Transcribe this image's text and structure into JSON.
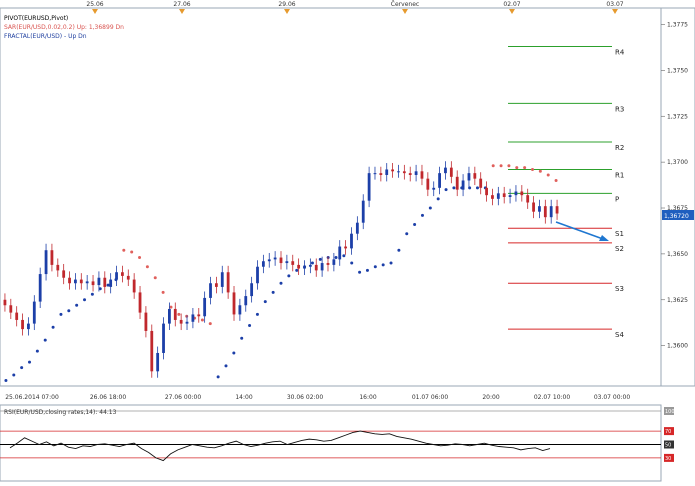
{
  "chart_data": {
    "type": "candlestick",
    "title": "PIVOT(EURUSD,Pivot)",
    "instrument": "EUR/USD",
    "legend": [
      {
        "name": "PIVOT(EURUSD,Pivot)",
        "color": "#000000"
      },
      {
        "name": "SAR(EUR/USD,0.02,0.2)   Up: 1,36899   Dn",
        "color": "#d9534f"
      },
      {
        "name": "FRACTAL(EUR/USD) - Up  Dn",
        "color": "#1f3f9f"
      }
    ],
    "top_date_labels": [
      "25.06",
      "27.06",
      "29.06",
      "Červenec",
      "02.07",
      "03.07"
    ],
    "bottom_time_labels": [
      "25.06.2014 07:00",
      "26.06 18:00",
      "27.06 00:00",
      "14:00",
      "30.06 02:00",
      "16:00",
      "01.07 06:00",
      "20:00",
      "02.07 10:00",
      "03.07 00:00"
    ],
    "y_ticks": [
      "1,3775",
      "1,3750",
      "1,3725",
      "1,3700",
      "1,3675",
      "1,3650",
      "1,3625",
      "1,3600"
    ],
    "ylim": [
      1.3578,
      1.3784
    ],
    "current_price": "1,36720",
    "current_price_value": 1.3672,
    "pivot_levels": [
      {
        "label": "R4",
        "value": 1.3763,
        "color": "#2ca02c"
      },
      {
        "label": "R3",
        "value": 1.3732,
        "color": "#2ca02c"
      },
      {
        "label": "R2",
        "value": 1.3711,
        "color": "#2ca02c"
      },
      {
        "label": "R1",
        "value": 1.3696,
        "color": "#2ca02c"
      },
      {
        "label": "P",
        "value": 1.3683,
        "color": "#2ca02c"
      },
      {
        "label": "S1",
        "value": 1.3664,
        "color": "#d62728"
      },
      {
        "label": "S2",
        "value": 1.3656,
        "color": "#d62728"
      },
      {
        "label": "S3",
        "value": 1.3634,
        "color": "#d62728"
      },
      {
        "label": "S4",
        "value": 1.3609,
        "color": "#d62728"
      }
    ],
    "candles_close": [
      1.3622,
      1.3618,
      1.3614,
      1.3609,
      1.3612,
      1.3624,
      1.3639,
      1.3652,
      1.3644,
      1.3641,
      1.3637,
      1.3634,
      1.3636,
      1.3634,
      1.3635,
      1.3633,
      1.3637,
      1.3632,
      1.3636,
      1.364,
      1.3638,
      1.3636,
      1.3629,
      1.3618,
      1.3608,
      1.3586,
      1.3596,
      1.3612,
      1.362,
      1.3614,
      1.3612,
      1.3613,
      1.3617,
      1.3616,
      1.3626,
      1.3634,
      1.3632,
      1.364,
      1.3629,
      1.3617,
      1.3622,
      1.3627,
      1.3634,
      1.3643,
      1.3646,
      1.3647,
      1.3648,
      1.3645,
      1.3646,
      1.3644,
      1.3642,
      1.3643,
      1.3644,
      1.3641,
      1.3645,
      1.3644,
      1.3647,
      1.3654,
      1.3653,
      1.3661,
      1.3667,
      1.3679,
      1.3694,
      1.3694,
      1.3693,
      1.3696,
      1.3695,
      1.3695,
      1.3694,
      1.3693,
      1.3695,
      1.3691,
      1.3685,
      1.3686,
      1.3694,
      1.3697,
      1.3692,
      1.3685,
      1.369,
      1.3694,
      1.3691,
      1.3686,
      1.3682,
      1.368,
      1.3683,
      1.3681,
      1.3682,
      1.3684,
      1.3682,
      1.3678,
      1.3673,
      1.3676,
      1.367,
      1.3676,
      1.3672
    ],
    "sar_dots_value": [
      1.3581,
      1.3584,
      1.3588,
      1.3591,
      1.3597,
      1.3603,
      1.361,
      1.3617,
      1.3619,
      1.3622,
      1.3625,
      1.3628,
      1.3631,
      1.3633,
      1.3636,
      1.3652,
      1.3651,
      1.3648,
      1.3643,
      1.3637,
      1.3629,
      1.3621,
      1.3617,
      1.3616,
      1.3615,
      1.3614,
      1.3612,
      1.3583,
      1.3589,
      1.3596,
      1.3604,
      1.3611,
      1.3617,
      1.3624,
      1.3629,
      1.3634,
      1.3638,
      1.3641,
      1.3643,
      1.3645,
      1.3647,
      1.3648,
      1.3648,
      1.3649,
      1.3645,
      1.364,
      1.3641,
      1.3643,
      1.3644,
      1.3645,
      1.3652,
      1.3661,
      1.3666,
      1.3671,
      1.3675,
      1.368,
      1.3685,
      1.3686,
      1.3686,
      1.3686,
      1.3686,
      1.3686,
      1.3698,
      1.3698,
      1.3698,
      1.3697,
      1.3697,
      1.3696,
      1.3695,
      1.3693,
      1.369
    ],
    "rsi": {
      "label": "RSI(EUR/USD,closing rates,14): 44.13",
      "levels": [
        100,
        70,
        50,
        30
      ],
      "ylim": [
        0,
        100
      ],
      "values": [
        45,
        52,
        60,
        55,
        50,
        54,
        48,
        52,
        46,
        44,
        48,
        47,
        50,
        51,
        49,
        47,
        50,
        52,
        44,
        38,
        30,
        26,
        36,
        42,
        46,
        50,
        48,
        46,
        45,
        48,
        52,
        55,
        50,
        47,
        49,
        52,
        54,
        55,
        50,
        53,
        56,
        58,
        57,
        55,
        56,
        60,
        64,
        68,
        70,
        68,
        66,
        65,
        66,
        62,
        60,
        58,
        55,
        52,
        50,
        48,
        49,
        51,
        50,
        48,
        50,
        52,
        49,
        47,
        46,
        45,
        42,
        44,
        45,
        41,
        44
      ]
    }
  }
}
